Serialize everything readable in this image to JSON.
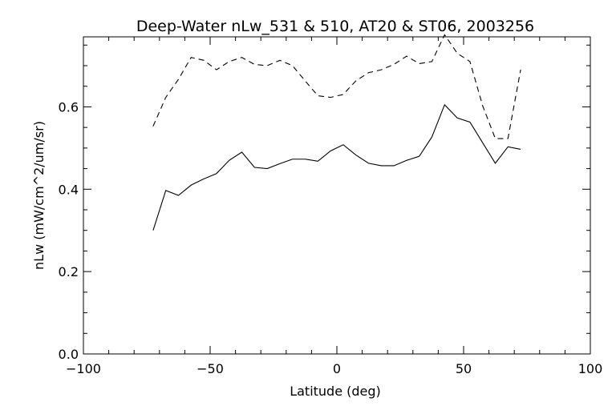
{
  "chart_data": {
    "type": "line",
    "title": "Deep-Water nLw_531 & 510, AT20 & ST06, 2003256",
    "xlabel": "Latitude (deg)",
    "ylabel": "nLw (mW/cm^2/um/sr)",
    "xlim": [
      -100,
      100
    ],
    "ylim": [
      0,
      0.77
    ],
    "xticks": [
      -100,
      -50,
      0,
      50,
      100
    ],
    "xtick_labels": [
      "−100",
      "−50",
      "0",
      "50",
      "100"
    ],
    "yticks": [
      0.0,
      0.2,
      0.4,
      0.6
    ],
    "ytick_labels": [
      "0.0",
      "0.2",
      "0.4",
      "0.6"
    ],
    "x_minor_step": 10,
    "y_minor_step": 0.05,
    "grid": false,
    "series": [
      {
        "style": "dashed",
        "x": [
          -72.5,
          -67.5,
          -62.5,
          -57.5,
          -52.5,
          -47.5,
          -42.5,
          -37.5,
          -32.5,
          -27.5,
          -22.5,
          -17.5,
          -12.5,
          -7.5,
          -2.5,
          2.5,
          7.5,
          12.5,
          17.5,
          22.5,
          27.5,
          32.5,
          37.5,
          42.5,
          47.5,
          52.5,
          57.5,
          62.5,
          67.5,
          72.5
        ],
        "y": [
          0.553,
          0.623,
          0.667,
          0.72,
          0.713,
          0.69,
          0.71,
          0.72,
          0.703,
          0.7,
          0.713,
          0.7,
          0.663,
          0.627,
          0.623,
          0.63,
          0.663,
          0.683,
          0.69,
          0.703,
          0.723,
          0.705,
          0.71,
          0.775,
          0.73,
          0.71,
          0.603,
          0.523,
          0.523,
          0.69
        ]
      },
      {
        "style": "solid",
        "x": [
          -72.5,
          -67.5,
          -62.5,
          -57.5,
          -52.5,
          -47.5,
          -42.5,
          -37.5,
          -32.5,
          -27.5,
          -22.5,
          -17.5,
          -12.5,
          -7.5,
          -2.5,
          2.5,
          7.5,
          12.5,
          17.5,
          22.5,
          27.5,
          32.5,
          37.5,
          42.5,
          47.5,
          52.5,
          57.5,
          62.5,
          67.5,
          72.5
        ],
        "y": [
          0.3,
          0.397,
          0.385,
          0.41,
          0.425,
          0.438,
          0.47,
          0.49,
          0.453,
          0.45,
          0.462,
          0.473,
          0.473,
          0.468,
          0.493,
          0.508,
          0.483,
          0.463,
          0.457,
          0.457,
          0.47,
          0.48,
          0.527,
          0.605,
          0.573,
          0.563,
          0.513,
          0.463,
          0.503,
          0.497
        ]
      }
    ]
  }
}
